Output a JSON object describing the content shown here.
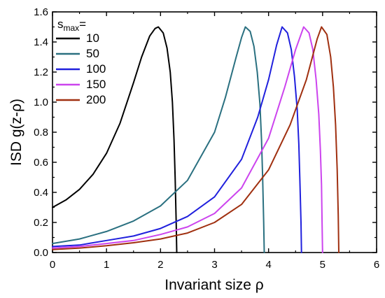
{
  "chart_data": {
    "type": "line",
    "xlabel": "Invariant size ρ",
    "ylabel": "ISD g(z-ρ)",
    "xlim": [
      0,
      6
    ],
    "ylim": [
      0,
      1.6
    ],
    "x_ticks": [
      "0",
      "1",
      "2",
      "3",
      "4",
      "5",
      "6"
    ],
    "y_ticks": [
      "0.0",
      "0.2",
      "0.4",
      "0.6",
      "0.8",
      "1.0",
      "1.2",
      "1.4",
      "1.6"
    ],
    "grid": false,
    "legend": {
      "title_main": "s",
      "title_sub": "max",
      "title_suffix": "=",
      "placement": "top-left"
    },
    "series": [
      {
        "name": "10",
        "color": "#000000",
        "x": [
          0,
          0.25,
          0.5,
          0.75,
          1.0,
          1.25,
          1.5,
          1.65,
          1.8,
          1.9,
          1.96,
          2.05,
          2.12,
          2.18,
          2.22,
          2.25,
          2.27,
          2.29,
          2.3
        ],
        "y": [
          0.3,
          0.35,
          0.42,
          0.52,
          0.66,
          0.86,
          1.13,
          1.3,
          1.44,
          1.49,
          1.5,
          1.46,
          1.36,
          1.2,
          1.0,
          0.75,
          0.5,
          0.2,
          0.0
        ]
      },
      {
        "name": "50",
        "color": "#2a7080",
        "x": [
          0,
          0.5,
          1.0,
          1.5,
          2.0,
          2.5,
          3.0,
          3.2,
          3.4,
          3.5,
          3.57,
          3.66,
          3.73,
          3.79,
          3.84,
          3.87,
          3.89,
          3.91,
          3.92
        ],
        "y": [
          0.06,
          0.09,
          0.14,
          0.21,
          0.31,
          0.48,
          0.8,
          1.03,
          1.3,
          1.43,
          1.5,
          1.47,
          1.37,
          1.2,
          0.99,
          0.75,
          0.5,
          0.2,
          0.0
        ]
      },
      {
        "name": "100",
        "color": "#2020dd",
        "x": [
          0,
          0.5,
          1.0,
          1.5,
          2.0,
          2.5,
          3.0,
          3.5,
          3.8,
          4.0,
          4.15,
          4.25,
          4.35,
          4.42,
          4.48,
          4.53,
          4.56,
          4.58,
          4.6,
          4.61
        ],
        "y": [
          0.04,
          0.05,
          0.08,
          0.11,
          0.16,
          0.24,
          0.37,
          0.62,
          0.9,
          1.15,
          1.38,
          1.5,
          1.46,
          1.35,
          1.17,
          0.95,
          0.72,
          0.48,
          0.2,
          0.0
        ]
      },
      {
        "name": "150",
        "color": "#cc44ee",
        "x": [
          0,
          0.5,
          1.0,
          1.5,
          2.0,
          2.5,
          3.0,
          3.5,
          4.0,
          4.3,
          4.5,
          4.65,
          4.75,
          4.82,
          4.88,
          4.93,
          4.96,
          4.98,
          4.99,
          5.0
        ],
        "y": [
          0.03,
          0.04,
          0.06,
          0.08,
          0.12,
          0.17,
          0.26,
          0.43,
          0.76,
          1.1,
          1.35,
          1.5,
          1.46,
          1.35,
          1.15,
          0.92,
          0.68,
          0.45,
          0.2,
          0.0
        ]
      },
      {
        "name": "200",
        "color": "#a03010",
        "x": [
          0,
          0.5,
          1.0,
          1.5,
          2.0,
          2.5,
          3.0,
          3.5,
          4.0,
          4.4,
          4.7,
          4.9,
          4.98,
          5.08,
          5.15,
          5.2,
          5.24,
          5.27,
          5.29,
          5.3
        ],
        "y": [
          0.02,
          0.03,
          0.045,
          0.065,
          0.09,
          0.13,
          0.2,
          0.32,
          0.55,
          0.85,
          1.15,
          1.42,
          1.5,
          1.45,
          1.3,
          1.1,
          0.85,
          0.55,
          0.25,
          0.0
        ]
      }
    ]
  }
}
